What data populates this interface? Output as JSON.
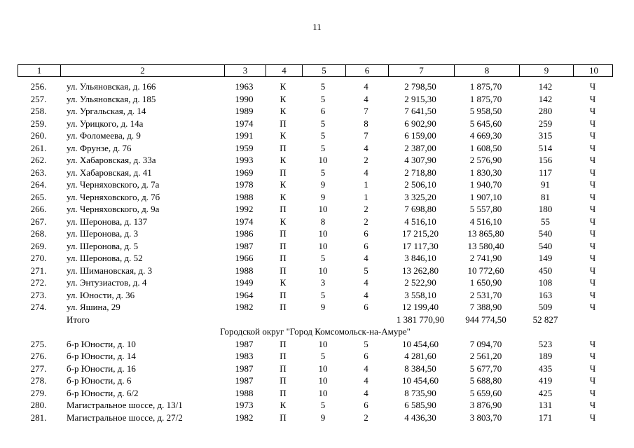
{
  "page": {
    "number": "11"
  },
  "table": {
    "header_cells": [
      "1",
      "2",
      "3",
      "4",
      "5",
      "6",
      "7",
      "8",
      "9",
      "10"
    ],
    "groups": [
      {
        "rows": [
          [
            "256.",
            "ул. Ульяновская, д. 166",
            "1963",
            "К",
            "5",
            "4",
            "2 798,50",
            "1 875,70",
            "142",
            "Ч"
          ],
          [
            "257.",
            "ул. Ульяновская, д. 185",
            "1990",
            "К",
            "5",
            "4",
            "2 915,30",
            "1 875,70",
            "142",
            "Ч"
          ],
          [
            "258.",
            "ул. Ургальская, д. 14",
            "1989",
            "К",
            "6",
            "7",
            "7 641,50",
            "5 958,50",
            "280",
            "Ч"
          ],
          [
            "259.",
            "ул. Урицкого, д. 14а",
            "1974",
            "П",
            "5",
            "8",
            "6 902,90",
            "5 645,60",
            "259",
            "Ч"
          ],
          [
            "260.",
            "ул. Фоломеева, д. 9",
            "1991",
            "К",
            "5",
            "7",
            "6 159,00",
            "4 669,30",
            "315",
            "Ч"
          ],
          [
            "261.",
            "ул. Фрунзе, д. 76",
            "1959",
            "П",
            "5",
            "4",
            "2 387,00",
            "1 608,50",
            "514",
            "Ч"
          ],
          [
            "262.",
            "ул. Хабаровская, д. 33а",
            "1993",
            "К",
            "10",
            "2",
            "4 307,90",
            "2 576,90",
            "156",
            "Ч"
          ],
          [
            "263.",
            "ул. Хабаровская, д. 41",
            "1969",
            "П",
            "5",
            "4",
            "2 718,80",
            "1 830,30",
            "117",
            "Ч"
          ],
          [
            "264.",
            "ул. Черняховского, д. 7а",
            "1978",
            "К",
            "9",
            "1",
            "2 506,10",
            "1 940,70",
            "91",
            "Ч"
          ],
          [
            "265.",
            "ул. Черняховского, д. 7б",
            "1988",
            "К",
            "9",
            "1",
            "3 325,20",
            "1 907,10",
            "81",
            "Ч"
          ],
          [
            "266.",
            "ул. Черняховского, д. 9а",
            "1992",
            "П",
            "10",
            "2",
            "7 698,80",
            "5 557,80",
            "180",
            "Ч"
          ],
          [
            "267.",
            "ул. Шеронова, д. 137",
            "1974",
            "К",
            "8",
            "2",
            "4 516,10",
            "4 516,10",
            "55",
            "Ч"
          ],
          [
            "268.",
            "ул. Шеронова, д. 3",
            "1986",
            "П",
            "10",
            "6",
            "17 215,20",
            "13 865,80",
            "540",
            "Ч"
          ],
          [
            "269.",
            "ул. Шеронова, д. 5",
            "1987",
            "П",
            "10",
            "6",
            "17 117,30",
            "13 580,40",
            "540",
            "Ч"
          ],
          [
            "270.",
            "ул. Шеронова, д. 52",
            "1966",
            "П",
            "5",
            "4",
            "3 846,10",
            "2 741,90",
            "149",
            "Ч"
          ],
          [
            "271.",
            "ул. Шимановская, д. 3",
            "1988",
            "П",
            "10",
            "5",
            "13 262,80",
            "10 772,60",
            "450",
            "Ч"
          ],
          [
            "272.",
            "ул. Энтузиастов, д. 4",
            "1949",
            "К",
            "3",
            "4",
            "2 522,90",
            "1 650,90",
            "108",
            "Ч"
          ],
          [
            "273.",
            "ул. Юности, д. 36",
            "1964",
            "П",
            "5",
            "4",
            "3 558,10",
            "2 531,70",
            "163",
            "Ч"
          ],
          [
            "274.",
            "ул. Яшина, 29",
            "1982",
            "П",
            "9",
            "6",
            "12 199,40",
            "7 388,90",
            "509",
            "Ч"
          ]
        ],
        "total": {
          "label": "Итого",
          "area_total": "1 381 770,90",
          "area_living": "944 774,50",
          "residents": "52 827"
        }
      },
      {
        "heading": "Городской округ \"Город Комсомольск-на-Амуре\"",
        "rows": [
          [
            "275.",
            "б-р Юности, д. 10",
            "1987",
            "П",
            "10",
            "5",
            "10 454,60",
            "7 094,70",
            "523",
            "Ч"
          ],
          [
            "276.",
            "б-р Юности, д. 14",
            "1983",
            "П",
            "5",
            "6",
            "4 281,60",
            "2 561,20",
            "189",
            "Ч"
          ],
          [
            "277.",
            "б-р Юности, д. 16",
            "1987",
            "П",
            "10",
            "4",
            "8 384,50",
            "5 677,70",
            "435",
            "Ч"
          ],
          [
            "278.",
            "б-р Юности, д. 6",
            "1987",
            "П",
            "10",
            "4",
            "10 454,60",
            "5 688,80",
            "419",
            "Ч"
          ],
          [
            "279.",
            "б-р Юности, д. 6/2",
            "1988",
            "П",
            "10",
            "4",
            "8 735,90",
            "5 659,60",
            "425",
            "Ч"
          ],
          [
            "280.",
            "Магистральное шоссе, д. 13/1",
            "1973",
            "К",
            "5",
            "6",
            "6 585,90",
            "3 876,90",
            "131",
            "Ч"
          ],
          [
            "281.",
            "Магистральное шоссе, д. 27/2",
            "1982",
            "П",
            "9",
            "2",
            "4 436,30",
            "3 803,70",
            "171",
            "Ч"
          ]
        ]
      }
    ]
  }
}
